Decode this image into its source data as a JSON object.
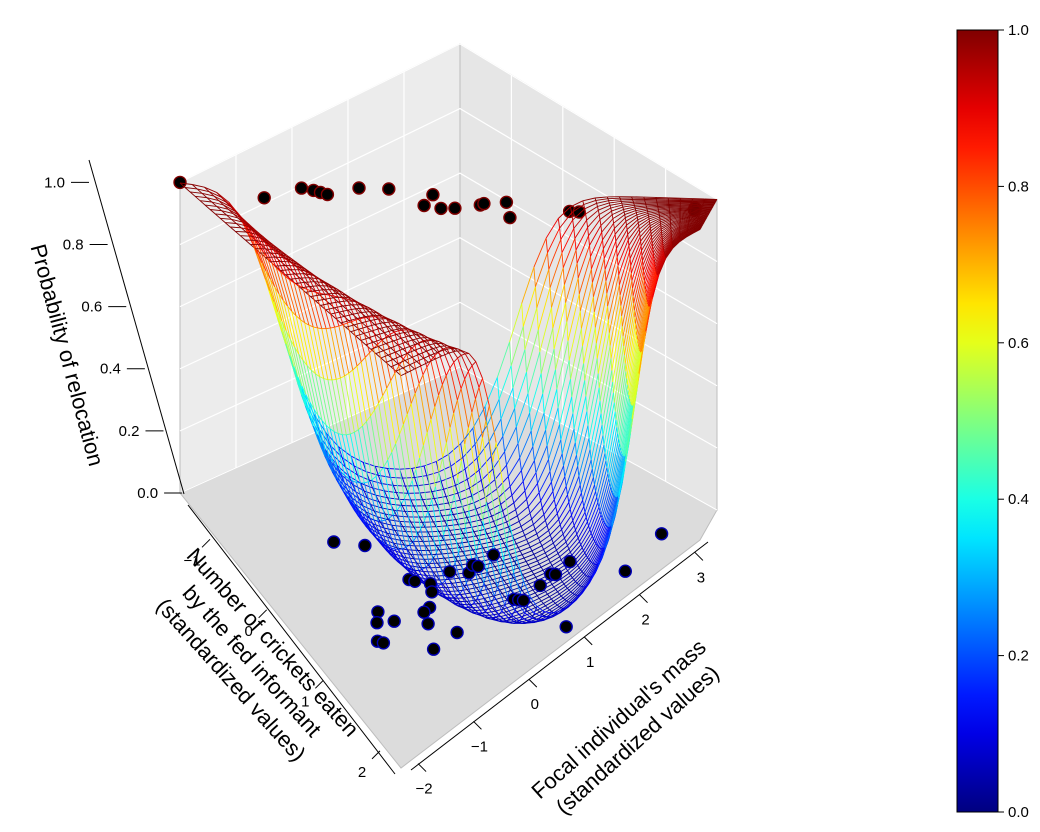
{
  "chart_data": {
    "type": "surface3d",
    "surface_model": "logistic",
    "zlabel": "Probability of relocation",
    "xlabel": "Focal individual's mass (standardized values)",
    "xlabel_lines": [
      "Focal individual's mass",
      "(standardized values)"
    ],
    "ylabel": "Number of crickets eaten by the fed informant (standardized values)",
    "ylabel_lines": [
      "Number of crickets eaten",
      "by the fed informant",
      "(standardized values)"
    ],
    "x_ticks": [
      "−2",
      "−1",
      "0",
      "1",
      "2",
      "3"
    ],
    "x_tick_values": [
      -2,
      -1,
      0,
      1,
      2,
      3
    ],
    "y_ticks": [
      "−1",
      "0",
      "1",
      "2"
    ],
    "y_tick_values": [
      -1,
      0,
      1,
      2
    ],
    "z_ticks": [
      "0.0",
      "0.2",
      "0.4",
      "0.6",
      "0.8",
      "1.0"
    ],
    "z_tick_values": [
      0.0,
      0.2,
      0.4,
      0.6,
      0.8,
      1.0
    ],
    "xlim": [
      -2.2,
      3.2
    ],
    "ylim": [
      -1.6,
      2.3
    ],
    "zlim": [
      0,
      1
    ],
    "colorbar": {
      "ticks": [
        "0.0",
        "0.2",
        "0.4",
        "0.6",
        "0.8",
        "1.0"
      ],
      "tick_values": [
        0.0,
        0.2,
        0.4,
        0.6,
        0.8,
        1.0
      ],
      "colormap": "jet"
    },
    "points_relocated": [
      {
        "x": -2.2,
        "y": -1.6,
        "z": 1
      },
      {
        "x": -1.5,
        "y": -1.3,
        "z": 1
      },
      {
        "x": -1.0,
        "y": -1.55,
        "z": 1
      },
      {
        "x": -0.9,
        "y": -1.5,
        "z": 1
      },
      {
        "x": -0.85,
        "y": -1.45,
        "z": 1
      },
      {
        "x": -0.8,
        "y": -1.4,
        "z": 1
      },
      {
        "x": -0.4,
        "y": -1.6,
        "z": 1
      },
      {
        "x": -0.1,
        "y": -1.6,
        "z": 1
      },
      {
        "x": 0.3,
        "y": -1.45,
        "z": 1
      },
      {
        "x": 0.1,
        "y": -1.1,
        "z": 1
      },
      {
        "x": 0.25,
        "y": -1.0,
        "z": 1
      },
      {
        "x": 0.4,
        "y": -1.0,
        "z": 1
      },
      {
        "x": 0.7,
        "y": -1.1,
        "z": 1
      },
      {
        "x": 0.75,
        "y": -1.15,
        "z": 1
      },
      {
        "x": 1.0,
        "y": -1.2,
        "z": 1
      },
      {
        "x": 0.9,
        "y": -0.6,
        "z": 1
      },
      {
        "x": 1.6,
        "y": -0.75,
        "z": 1
      },
      {
        "x": 1.7,
        "y": -0.7,
        "z": 1
      },
      {
        "x": 3.0,
        "y": -0.6,
        "z": 1
      },
      {
        "x": 3.0,
        "y": -0.35,
        "z": 1
      }
    ],
    "points_not_relocated": [
      {
        "x": -1.1,
        "y": 0.4,
        "z": 0
      },
      {
        "x": -1.2,
        "y": 0.55,
        "z": 0
      },
      {
        "x": -0.5,
        "y": 0.0,
        "z": 0
      },
      {
        "x": -0.45,
        "y": 0.05,
        "z": 0
      },
      {
        "x": -0.3,
        "y": 0.15,
        "z": 0
      },
      {
        "x": 0.0,
        "y": 0.0,
        "z": 0
      },
      {
        "x": 0.2,
        "y": 0.1,
        "z": 0
      },
      {
        "x": 0.3,
        "y": -0.05,
        "z": 0
      },
      {
        "x": 0.35,
        "y": 0.0,
        "z": 0
      },
      {
        "x": 0.6,
        "y": -0.2,
        "z": 0
      },
      {
        "x": -0.35,
        "y": 0.3,
        "z": 0
      },
      {
        "x": -0.5,
        "y": 0.55,
        "z": 0
      },
      {
        "x": -0.6,
        "y": 0.6,
        "z": 0
      },
      {
        "x": -0.65,
        "y": 0.8,
        "z": 0
      },
      {
        "x": -1.0,
        "y": 0.6,
        "z": 0
      },
      {
        "x": -1.35,
        "y": 0.8,
        "z": 0
      },
      {
        "x": -1.3,
        "y": 0.85,
        "z": 0
      },
      {
        "x": -0.4,
        "y": 1.1,
        "z": 0
      },
      {
        "x": -0.8,
        "y": 1.2,
        "z": 0
      },
      {
        "x": 0.5,
        "y": 0.9,
        "z": 0
      },
      {
        "x": 0.55,
        "y": 0.95,
        "z": 0
      },
      {
        "x": 0.6,
        "y": 1.0,
        "z": 0
      },
      {
        "x": 0.9,
        "y": 0.8,
        "z": 0
      },
      {
        "x": 1.1,
        "y": 0.6,
        "z": 0
      },
      {
        "x": 1.15,
        "y": 0.65,
        "z": 0
      },
      {
        "x": 1.4,
        "y": 0.4,
        "z": 0
      },
      {
        "x": 2.6,
        "y": 0.15,
        "z": 0
      },
      {
        "x": 2.0,
        "y": 1.4,
        "z": 0
      },
      {
        "x": 0.9,
        "y": 2.0,
        "z": 0
      },
      {
        "x": -1.0,
        "y": -0.8,
        "z": 0
      },
      {
        "x": -0.7,
        "y": -0.7,
        "z": 0
      }
    ],
    "grid": true
  }
}
